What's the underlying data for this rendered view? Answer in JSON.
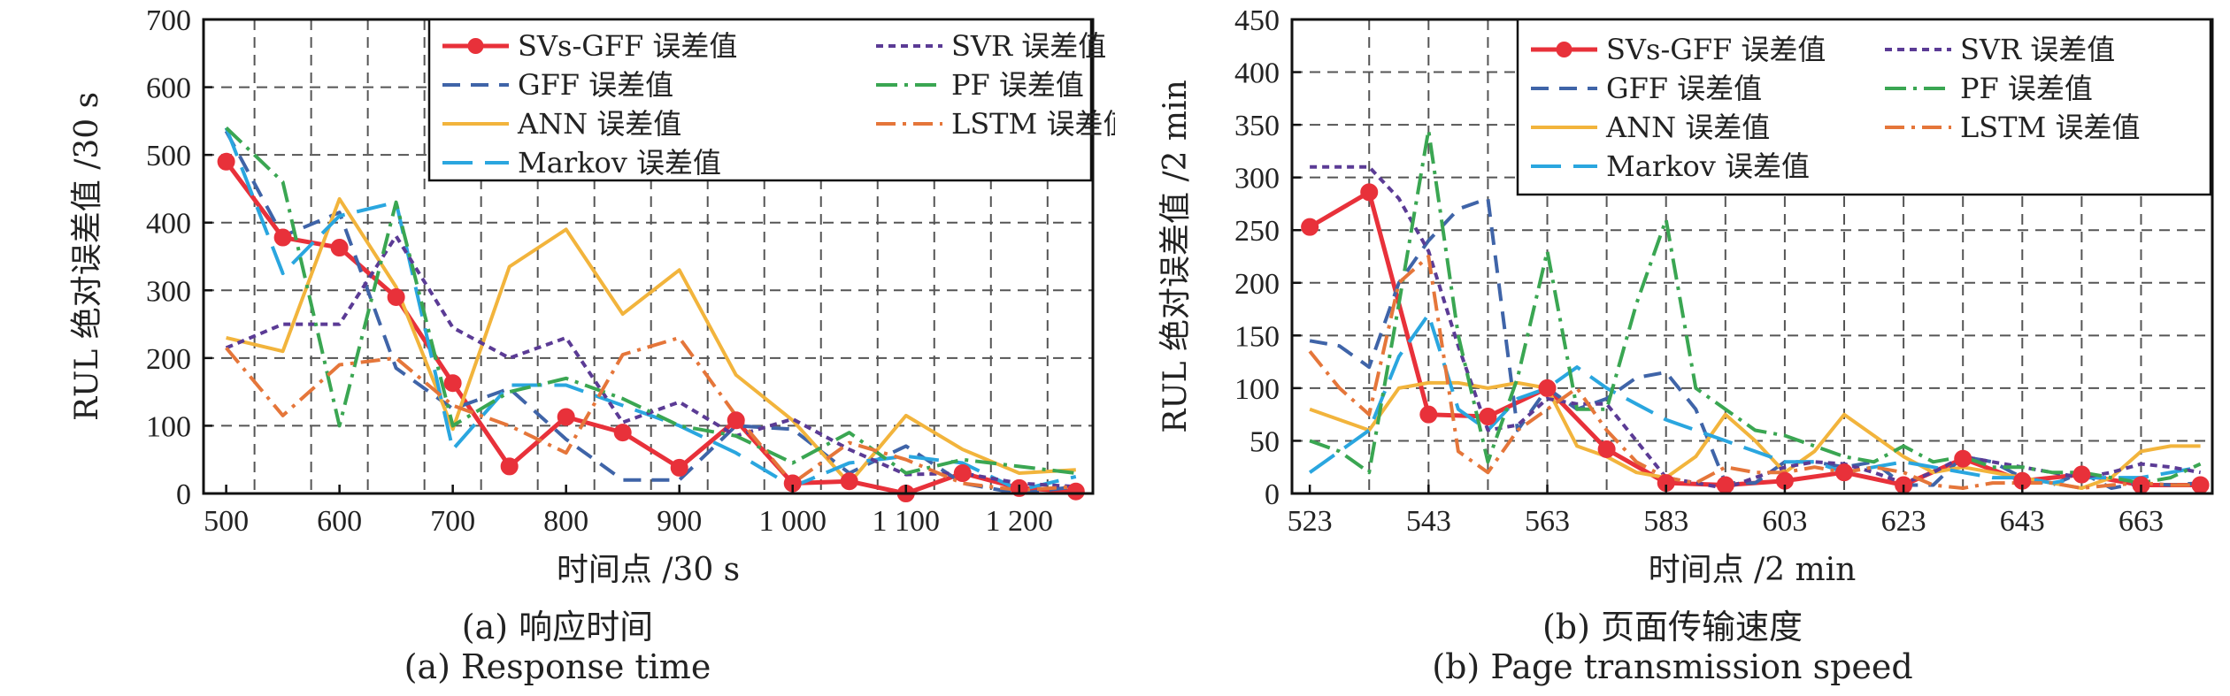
{
  "colors": {
    "svs_gff": "#e8313a",
    "gff": "#3f64a8",
    "ann": "#f2b43c",
    "markov": "#2aa6df",
    "svr": "#5b3b95",
    "pf": "#3aa652",
    "lstm": "#e5763a",
    "grid": "#555555",
    "axis": "#111111"
  },
  "legend_labels": [
    "SVs-GFF 误差值",
    "GFF 误差值",
    "ANN 误差值",
    "Markov 误差值",
    "SVR 误差值",
    "PF 误差值",
    "LSTM 误差值"
  ],
  "chart_data": [
    {
      "type": "line",
      "caption_cn": "(a) 响应时间",
      "caption_en": "(a) Response time",
      "xlabel": "时间点 /30 s",
      "ylabel": "RUL 绝对误差值 /30 s",
      "xlim": [
        480,
        1265
      ],
      "ylim": [
        0,
        700
      ],
      "xticks": [
        500,
        600,
        700,
        800,
        900,
        1000,
        1100,
        1200
      ],
      "xtick_labels": [
        "500",
        "600",
        "700",
        "800",
        "900",
        "1 000",
        "1 100",
        "1 200"
      ],
      "xgrid": [
        525,
        575,
        625,
        675,
        725,
        775,
        825,
        875,
        925,
        975,
        1025,
        1075,
        1125,
        1175,
        1225
      ],
      "yticks": [
        0,
        100,
        200,
        300,
        400,
        500,
        600,
        700
      ],
      "grid": true,
      "legend_position": "top-right",
      "legend_columns": 2,
      "x": [
        500,
        550,
        600,
        650,
        700,
        750,
        800,
        850,
        900,
        950,
        1000,
        1050,
        1100,
        1150,
        1200,
        1250
      ],
      "series": [
        {
          "name": "SVs-GFF 误差值",
          "key": "svs_gff",
          "dash": "",
          "marker": true,
          "values": [
            490,
            378,
            363,
            290,
            163,
            40,
            113,
            90,
            38,
            108,
            15,
            18,
            0,
            30,
            8,
            3
          ]
        },
        {
          "name": "GFF 误差值",
          "key": "gff",
          "dash": "20,12",
          "values": [
            535,
            380,
            415,
            185,
            125,
            155,
            80,
            20,
            20,
            100,
            95,
            30,
            70,
            15,
            0,
            10
          ]
        },
        {
          "name": "ANN 误差值",
          "key": "ann",
          "dash": "",
          "values": [
            230,
            210,
            435,
            305,
            95,
            335,
            390,
            265,
            330,
            175,
            108,
            15,
            115,
            65,
            30,
            35
          ]
        },
        {
          "name": "Markov 误差值",
          "key": "markov",
          "dash": "34,14",
          "values": [
            540,
            325,
            410,
            430,
            65,
            160,
            160,
            130,
            100,
            60,
            10,
            45,
            55,
            45,
            5,
            25
          ]
        },
        {
          "name": "SVR 误差值",
          "key": "svr",
          "dash": "8,6",
          "values": [
            215,
            250,
            250,
            380,
            245,
            200,
            230,
            105,
            135,
            85,
            110,
            65,
            28,
            30,
            15,
            10
          ]
        },
        {
          "name": "PF 误差值",
          "key": "pf",
          "dash": "24,8,4,8",
          "values": [
            540,
            460,
            100,
            430,
            100,
            150,
            170,
            140,
            100,
            85,
            45,
            90,
            30,
            50,
            40,
            30
          ]
        },
        {
          "name": "LSTM 误差值",
          "key": "lstm",
          "dash": "22,8,4,8",
          "values": [
            215,
            115,
            190,
            200,
            130,
            100,
            60,
            205,
            230,
            115,
            15,
            75,
            50,
            15,
            5,
            10
          ]
        }
      ]
    },
    {
      "type": "line",
      "caption_cn": "(b) 页面传输速度",
      "caption_en": "(b) Page transmission speed",
      "xlabel": "时间点 /2 min",
      "ylabel": "RUL 绝对误差值 /2 min",
      "xlim": [
        520,
        675
      ],
      "ylim": [
        0,
        450
      ],
      "xticks": [
        523,
        543,
        563,
        583,
        603,
        623,
        643,
        663
      ],
      "xtick_labels": [
        "523",
        "543",
        "563",
        "583",
        "603",
        "623",
        "643",
        "663"
      ],
      "xgrid": [
        533,
        543,
        553,
        563,
        573,
        583,
        593,
        603,
        613,
        623,
        633,
        643,
        653,
        663
      ],
      "yticks": [
        0,
        50,
        100,
        150,
        200,
        250,
        300,
        350,
        400,
        450
      ],
      "grid": true,
      "legend_position": "top-right",
      "legend_columns": 2,
      "x": [
        523,
        528,
        533,
        538,
        543,
        548,
        553,
        558,
        563,
        568,
        573,
        578,
        583,
        588,
        593,
        598,
        603,
        608,
        613,
        618,
        623,
        628,
        633,
        638,
        643,
        648,
        653,
        658,
        663,
        668,
        673
      ],
      "series": [
        {
          "name": "SVs-GFF 误差值",
          "key": "svs_gff",
          "dash": "",
          "marker": true,
          "values": [
            253,
            null,
            286,
            null,
            75,
            null,
            73,
            null,
            100,
            null,
            42,
            null,
            10,
            null,
            8,
            null,
            12,
            null,
            20,
            null,
            8,
            null,
            33,
            null,
            12,
            null,
            18,
            null,
            8,
            null,
            8
          ]
        },
        {
          "name": "GFF 误差值",
          "key": "gff",
          "dash": "20,12",
          "values": [
            145,
            140,
            120,
            200,
            240,
            270,
            280,
            60,
            100,
            80,
            90,
            110,
            115,
            80,
            10,
            10,
            30,
            30,
            25,
            30,
            8,
            8,
            35,
            30,
            15,
            8,
            20,
            5,
            10,
            8,
            10
          ]
        },
        {
          "name": "ANN 误差值",
          "key": "ann",
          "dash": "",
          "values": [
            80,
            70,
            60,
            100,
            105,
            105,
            100,
            105,
            100,
            45,
            35,
            20,
            15,
            35,
            75,
            50,
            20,
            40,
            75,
            55,
            35,
            20,
            25,
            20,
            15,
            10,
            5,
            15,
            40,
            45,
            45
          ]
        },
        {
          "name": "Markov 误差值",
          "key": "markov",
          "dash": "34,14",
          "values": [
            20,
            40,
            60,
            130,
            170,
            80,
            60,
            90,
            100,
            120,
            100,
            85,
            70,
            60,
            50,
            40,
            30,
            30,
            20,
            25,
            30,
            25,
            20,
            15,
            15,
            10,
            15,
            15,
            15,
            20,
            25
          ]
        },
        {
          "name": "SVR 误差值",
          "key": "svr",
          "dash": "8,6",
          "values": [
            310,
            310,
            310,
            280,
            230,
            140,
            60,
            65,
            90,
            85,
            85,
            50,
            15,
            10,
            5,
            15,
            25,
            30,
            28,
            20,
            10,
            20,
            35,
            30,
            25,
            20,
            15,
            20,
            28,
            25,
            20
          ]
        },
        {
          "name": "PF 误差值",
          "key": "pf",
          "dash": "24,8,4,8",
          "values": [
            50,
            40,
            20,
            180,
            345,
            150,
            30,
            110,
            230,
            80,
            80,
            180,
            260,
            100,
            80,
            60,
            55,
            45,
            35,
            30,
            45,
            30,
            35,
            25,
            25,
            20,
            20,
            15,
            10,
            15,
            28
          ]
        },
        {
          "name": "LSTM 误差值",
          "key": "lstm",
          "dash": "22,8,4,8",
          "values": [
            135,
            100,
            75,
            200,
            225,
            40,
            20,
            60,
            80,
            100,
            60,
            30,
            15,
            10,
            25,
            20,
            20,
            25,
            20,
            25,
            20,
            8,
            5,
            10,
            10,
            10,
            5,
            8,
            10,
            8,
            8
          ]
        }
      ]
    }
  ]
}
